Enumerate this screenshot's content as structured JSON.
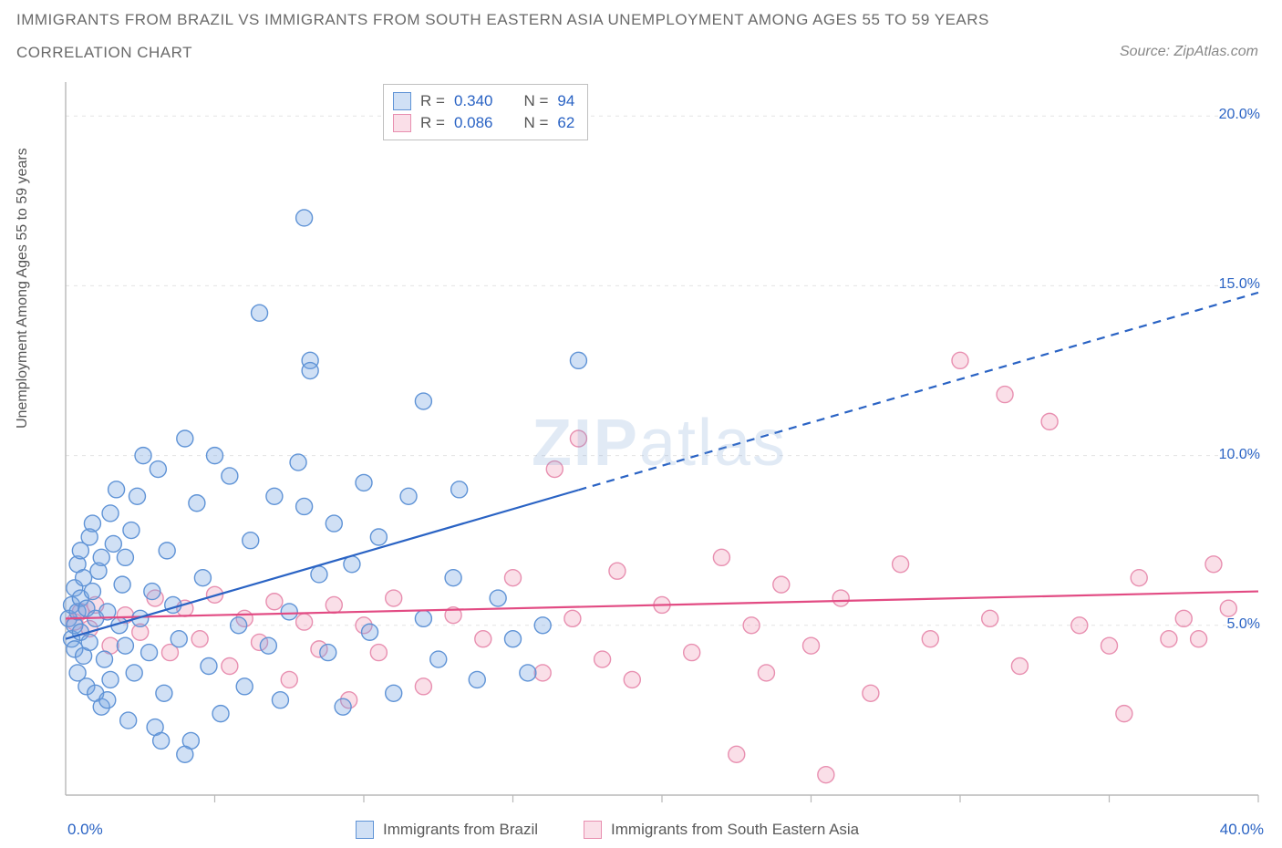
{
  "title_line1": "IMMIGRANTS FROM BRAZIL VS IMMIGRANTS FROM SOUTH EASTERN ASIA UNEMPLOYMENT AMONG AGES 55 TO 59 YEARS",
  "title_line2": "CORRELATION CHART",
  "source_prefix": "Source: ",
  "source_name": "ZipAtlas.com",
  "ylabel": "Unemployment Among Ages 55 to 59 years",
  "watermark_a": "ZIP",
  "watermark_b": "atlas",
  "chart": {
    "type": "scatter",
    "xlim": [
      0,
      40
    ],
    "ylim": [
      0,
      21
    ],
    "x_tick_step": 5,
    "y_ticks": [
      5,
      10,
      15,
      20
    ],
    "y_tick_labels": [
      "5.0%",
      "10.0%",
      "15.0%",
      "20.0%"
    ],
    "x_left_label": "0.0%",
    "x_right_label": "40.0%",
    "plot_bg": "#ffffff",
    "grid_color": "#e3e3e3",
    "axis_color": "#b8b8b8",
    "marker_radius": 9,
    "marker_stroke_width": 1.4,
    "line_width": 2.2
  },
  "series": {
    "brazil": {
      "label": "Immigrants from Brazil",
      "R_label": "R = ",
      "R": "0.340",
      "N_label": "N = ",
      "N": "94",
      "fill": "rgba(120,165,225,0.35)",
      "stroke": "#5f93d6",
      "line_color": "#2a63c4",
      "trend": {
        "x1": 0,
        "y1": 4.6,
        "x2": 40,
        "y2": 14.8,
        "solid_until_x": 17.2
      },
      "points": [
        [
          0.1,
          5.2
        ],
        [
          0.2,
          4.6
        ],
        [
          0.2,
          5.6
        ],
        [
          0.3,
          6.1
        ],
        [
          0.3,
          4.3
        ],
        [
          0.3,
          5.0
        ],
        [
          0.4,
          3.6
        ],
        [
          0.4,
          5.4
        ],
        [
          0.4,
          6.8
        ],
        [
          0.5,
          4.8
        ],
        [
          0.5,
          7.2
        ],
        [
          0.5,
          5.8
        ],
        [
          0.6,
          4.1
        ],
        [
          0.6,
          6.4
        ],
        [
          0.7,
          3.2
        ],
        [
          0.7,
          5.5
        ],
        [
          0.8,
          7.6
        ],
        [
          0.8,
          4.5
        ],
        [
          0.9,
          6.0
        ],
        [
          0.9,
          8.0
        ],
        [
          1.0,
          3.0
        ],
        [
          1.0,
          5.2
        ],
        [
          1.1,
          6.6
        ],
        [
          1.2,
          2.6
        ],
        [
          1.2,
          7.0
        ],
        [
          1.3,
          4.0
        ],
        [
          1.4,
          5.4
        ],
        [
          1.5,
          8.3
        ],
        [
          1.5,
          3.4
        ],
        [
          1.6,
          7.4
        ],
        [
          1.7,
          9.0
        ],
        [
          1.8,
          5.0
        ],
        [
          1.9,
          6.2
        ],
        [
          2.0,
          4.4
        ],
        [
          2.1,
          2.2
        ],
        [
          2.2,
          7.8
        ],
        [
          2.3,
          3.6
        ],
        [
          2.4,
          8.8
        ],
        [
          2.5,
          5.2
        ],
        [
          2.6,
          10.0
        ],
        [
          2.8,
          4.2
        ],
        [
          2.9,
          6.0
        ],
        [
          3.0,
          2.0
        ],
        [
          3.1,
          9.6
        ],
        [
          3.3,
          3.0
        ],
        [
          3.4,
          7.2
        ],
        [
          3.6,
          5.6
        ],
        [
          3.8,
          4.6
        ],
        [
          4.0,
          10.5
        ],
        [
          4.2,
          1.6
        ],
        [
          4.4,
          8.6
        ],
        [
          4.6,
          6.4
        ],
        [
          4.8,
          3.8
        ],
        [
          5.0,
          10.0
        ],
        [
          5.2,
          2.4
        ],
        [
          5.5,
          9.4
        ],
        [
          5.8,
          5.0
        ],
        [
          6.0,
          3.2
        ],
        [
          6.2,
          7.5
        ],
        [
          6.5,
          14.2
        ],
        [
          6.8,
          4.4
        ],
        [
          7.0,
          8.8
        ],
        [
          7.2,
          2.8
        ],
        [
          7.5,
          5.4
        ],
        [
          7.8,
          9.8
        ],
        [
          8.0,
          17.0
        ],
        [
          8.2,
          12.8
        ],
        [
          8.2,
          12.5
        ],
        [
          8.5,
          6.5
        ],
        [
          8.8,
          4.2
        ],
        [
          9.0,
          8.0
        ],
        [
          9.3,
          2.6
        ],
        [
          9.6,
          6.8
        ],
        [
          10.0,
          9.2
        ],
        [
          10.2,
          4.8
        ],
        [
          10.5,
          7.6
        ],
        [
          11.0,
          3.0
        ],
        [
          11.5,
          8.8
        ],
        [
          12.0,
          5.2
        ],
        [
          12.0,
          11.6
        ],
        [
          12.5,
          4.0
        ],
        [
          13.0,
          6.4
        ],
        [
          13.2,
          9.0
        ],
        [
          13.8,
          3.4
        ],
        [
          14.5,
          5.8
        ],
        [
          15.0,
          4.6
        ],
        [
          15.5,
          3.6
        ],
        [
          16.0,
          5.0
        ],
        [
          17.2,
          12.8
        ],
        [
          8.0,
          8.5
        ],
        [
          4.0,
          1.2
        ],
        [
          3.2,
          1.6
        ],
        [
          2.0,
          7.0
        ],
        [
          1.4,
          2.8
        ]
      ]
    },
    "sea": {
      "label": "Immigrants from South Eastern Asia",
      "R_label": "R = ",
      "R": "0.086",
      "N_label": "N = ",
      "N": "62",
      "fill": "rgba(240,155,185,0.32)",
      "stroke": "#e88fb0",
      "line_color": "#e24b83",
      "trend": {
        "x1": 0,
        "y1": 5.2,
        "x2": 40,
        "y2": 6.0,
        "solid_until_x": 40
      },
      "points": [
        [
          0.3,
          5.1
        ],
        [
          0.5,
          5.4
        ],
        [
          0.8,
          4.9
        ],
        [
          1.0,
          5.6
        ],
        [
          1.5,
          4.4
        ],
        [
          2.0,
          5.3
        ],
        [
          2.5,
          4.8
        ],
        [
          3.0,
          5.8
        ],
        [
          3.5,
          4.2
        ],
        [
          4.0,
          5.5
        ],
        [
          4.5,
          4.6
        ],
        [
          5.0,
          5.9
        ],
        [
          5.5,
          3.8
        ],
        [
          6.0,
          5.2
        ],
        [
          6.5,
          4.5
        ],
        [
          7.0,
          5.7
        ],
        [
          7.5,
          3.4
        ],
        [
          8.0,
          5.1
        ],
        [
          8.5,
          4.3
        ],
        [
          9.0,
          5.6
        ],
        [
          9.5,
          2.8
        ],
        [
          10.0,
          5.0
        ],
        [
          10.5,
          4.2
        ],
        [
          11.0,
          5.8
        ],
        [
          12.0,
          3.2
        ],
        [
          13.0,
          5.3
        ],
        [
          14.0,
          4.6
        ],
        [
          15.0,
          6.4
        ],
        [
          16.0,
          3.6
        ],
        [
          16.4,
          9.6
        ],
        [
          17.0,
          5.2
        ],
        [
          17.2,
          10.5
        ],
        [
          18.0,
          4.0
        ],
        [
          18.5,
          6.6
        ],
        [
          19.0,
          3.4
        ],
        [
          20.0,
          5.6
        ],
        [
          21.0,
          4.2
        ],
        [
          22.0,
          7.0
        ],
        [
          22.5,
          1.2
        ],
        [
          23.0,
          5.0
        ],
        [
          23.5,
          3.6
        ],
        [
          24.0,
          6.2
        ],
        [
          25.0,
          4.4
        ],
        [
          25.5,
          0.6
        ],
        [
          26.0,
          5.8
        ],
        [
          27.0,
          3.0
        ],
        [
          28.0,
          6.8
        ],
        [
          29.0,
          4.6
        ],
        [
          30.0,
          12.8
        ],
        [
          31.0,
          5.2
        ],
        [
          31.5,
          11.8
        ],
        [
          32.0,
          3.8
        ],
        [
          33.0,
          11.0
        ],
        [
          34.0,
          5.0
        ],
        [
          35.0,
          4.4
        ],
        [
          35.5,
          2.4
        ],
        [
          36.0,
          6.4
        ],
        [
          37.0,
          4.6
        ],
        [
          38.0,
          4.6
        ],
        [
          38.5,
          6.8
        ],
        [
          39.0,
          5.5
        ],
        [
          37.5,
          5.2
        ]
      ]
    }
  }
}
